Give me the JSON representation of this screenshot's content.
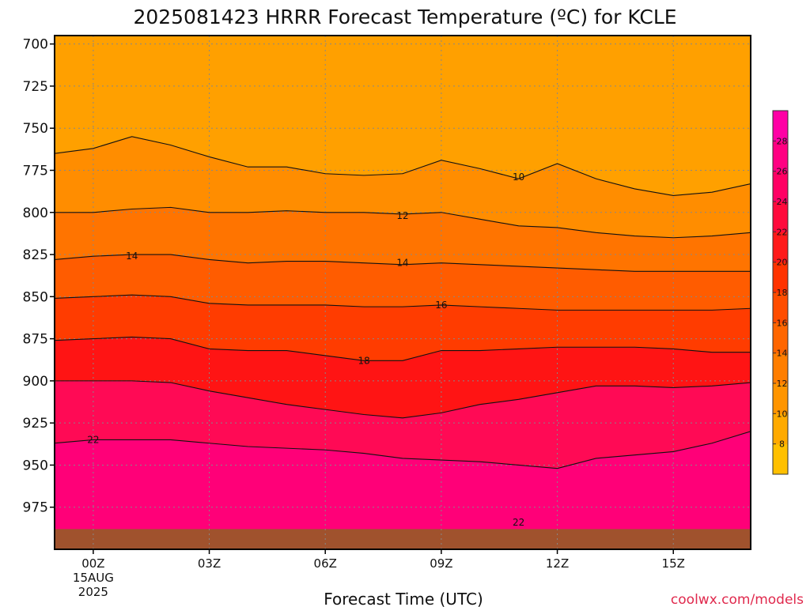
{
  "chart_data": {
    "type": "heatmap",
    "title": "2025081423 HRRR Forecast Temperature (ºC) for KCLE",
    "xlabel": "Forecast Time (UTC)",
    "ylabel": "",
    "credit": "coolwx.com/models",
    "x_ticks": [
      {
        "hour": 0,
        "lines": [
          "00Z",
          "15AUG",
          "2025"
        ]
      },
      {
        "hour": 3,
        "lines": [
          "03Z"
        ]
      },
      {
        "hour": 6,
        "lines": [
          "06Z"
        ]
      },
      {
        "hour": 9,
        "lines": [
          "09Z"
        ]
      },
      {
        "hour": 12,
        "lines": [
          "12Z"
        ]
      },
      {
        "hour": 15,
        "lines": [
          "15Z"
        ]
      }
    ],
    "xlim": [
      -1,
      17
    ],
    "y_ticks": [
      700,
      725,
      750,
      775,
      800,
      825,
      850,
      875,
      900,
      925,
      950,
      975
    ],
    "ylim": [
      695,
      1000
    ],
    "ground_pressure": 988,
    "grid": true,
    "hours": [
      -1,
      0,
      1,
      2,
      3,
      4,
      5,
      6,
      7,
      8,
      9,
      10,
      11,
      12,
      13,
      14,
      15,
      16,
      17
    ],
    "contours": [
      {
        "value": 22,
        "pressure": [
          937,
          935,
          935,
          935,
          937,
          939,
          940,
          941,
          943,
          946,
          947,
          948,
          950,
          952,
          946,
          944,
          942,
          937,
          930
        ]
      },
      {
        "value": 20,
        "pressure": [
          900,
          900,
          900,
          901,
          906,
          910,
          914,
          917,
          920,
          922,
          919,
          914,
          911,
          907,
          903,
          903,
          904,
          903,
          901
        ]
      },
      {
        "value": 18,
        "pressure": [
          876,
          875,
          874,
          875,
          881,
          882,
          882,
          885,
          888,
          888,
          882,
          882,
          881,
          880,
          880,
          880,
          881,
          883,
          883
        ]
      },
      {
        "value": 16,
        "pressure": [
          851,
          850,
          849,
          850,
          854,
          855,
          855,
          855,
          856,
          856,
          855,
          856,
          857,
          858,
          858,
          858,
          858,
          858,
          857
        ]
      },
      {
        "value": 14,
        "pressure": [
          828,
          826,
          825,
          825,
          828,
          830,
          829,
          829,
          830,
          831,
          830,
          831,
          832,
          833,
          834,
          835,
          835,
          835,
          835
        ]
      },
      {
        "value": 12,
        "pressure": [
          800,
          800,
          798,
          797,
          800,
          800,
          799,
          800,
          800,
          801,
          800,
          804,
          808,
          809,
          812,
          814,
          815,
          814,
          812
        ]
      },
      {
        "value": 10,
        "pressure": [
          765,
          762,
          755,
          760,
          767,
          773,
          773,
          777,
          778,
          777,
          769,
          774,
          780,
          771,
          780,
          786,
          790,
          788,
          783
        ]
      }
    ],
    "contour_labels": [
      {
        "value": 10,
        "hour": 11,
        "pressure": 779
      },
      {
        "value": 12,
        "hour": 8,
        "pressure": 802
      },
      {
        "value": 14,
        "hour": 1,
        "pressure": 826
      },
      {
        "value": 14,
        "hour": 8,
        "pressure": 830
      },
      {
        "value": 16,
        "hour": 9,
        "pressure": 855
      },
      {
        "value": 18,
        "hour": 7,
        "pressure": 888
      },
      {
        "value": 22,
        "hour": 0,
        "pressure": 935
      },
      {
        "value": 22,
        "hour": 11,
        "pressure": 984
      }
    ],
    "colorbar": {
      "ticks": [
        8,
        10,
        12,
        14,
        16,
        18,
        20,
        22,
        24,
        26,
        28
      ],
      "colors": [
        "#ffc000",
        "#ffaa00",
        "#ff9500",
        "#ff7e00",
        "#ff6600",
        "#ff4d00",
        "#ff3300",
        "#ff1a1a",
        "#ff0a3c",
        "#ff0064",
        "#ff0082",
        "#ff00a5"
      ]
    }
  }
}
